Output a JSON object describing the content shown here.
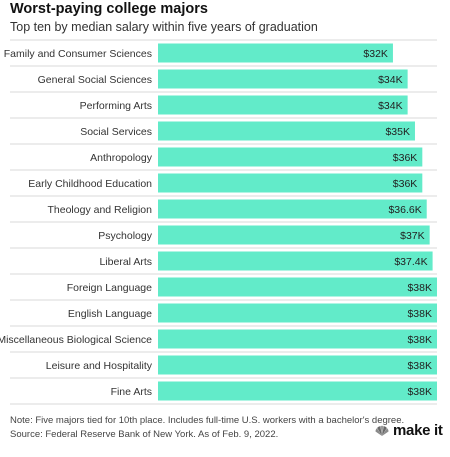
{
  "chart_data": {
    "type": "bar",
    "orientation": "horizontal",
    "title": "Worst-paying college majors",
    "subtitle": "Top ten by median salary within five years of graduation",
    "categories": [
      "Family and Consumer Sciences",
      "General Social Sciences",
      "Performing Arts",
      "Social Services",
      "Anthropology",
      "Early Childhood Education",
      "Theology and Religion",
      "Psychology",
      "Liberal Arts",
      "Foreign Language",
      "English Language",
      "Miscellaneous Biological Science",
      "Leisure and Hospitality",
      "Fine Arts"
    ],
    "values": [
      32000,
      34000,
      34000,
      35000,
      36000,
      36000,
      36600,
      37000,
      37400,
      38000,
      38000,
      38000,
      38000,
      38000
    ],
    "value_labels": [
      "$32K",
      "$34K",
      "$34K",
      "$35K",
      "$36K",
      "$36K",
      "$36.6K",
      "$37K",
      "$37.4K",
      "$38K",
      "$38K",
      "$38K",
      "$38K",
      "$38K"
    ],
    "xlim": [
      0,
      38000
    ],
    "bar_color": "#62EBC9",
    "gridlines": true
  },
  "footer": {
    "note": "Note: Five majors tied for 10th place. Includes full-time U.S. workers with a bachelor's degree.",
    "source": "Source: Federal Reserve Bank of New York. As of Feb. 9, 2022."
  },
  "brand": {
    "logo_text": "make it",
    "logo_icon": "cnbc-peacock-icon"
  }
}
